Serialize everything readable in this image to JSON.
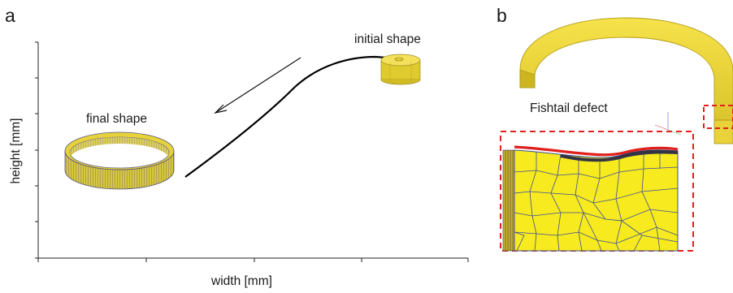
{
  "panel_a": {
    "letter": "a",
    "annotations": {
      "initial": "initial shape",
      "final": "final shape"
    },
    "axes": {
      "xlabel": "width [mm]",
      "ylabel": "height [mm]"
    }
  },
  "panel_b": {
    "letter": "b",
    "annotation": "Fishtail defect"
  },
  "colors": {
    "part_yellow": "#f2de3a",
    "part_yellow_dark": "#c9b41c",
    "defect_red": "#e0201c",
    "mesh_line": "#3c4f9a",
    "axis": "#222222"
  }
}
